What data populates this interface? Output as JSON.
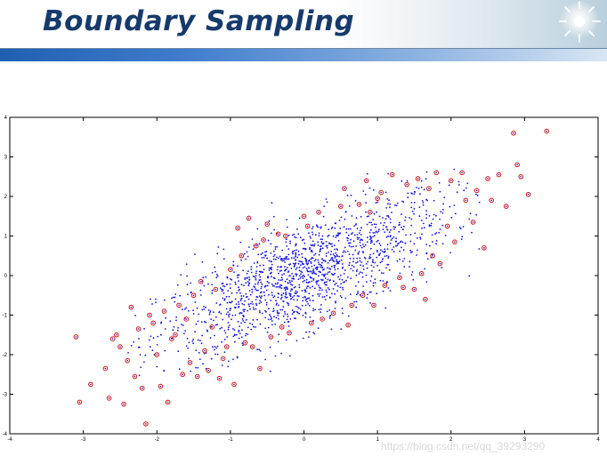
{
  "slide": {
    "title": "Boundary Sampling",
    "watermark": "https://blog.csdn.net/qq_39293290"
  },
  "colors": {
    "title": "#163a6b",
    "stripe": "#2f6fc2",
    "interior_points": "#1414d8",
    "boundary_points": "#d01010"
  },
  "chart_data": {
    "type": "scatter",
    "title": "",
    "xlabel": "",
    "ylabel": "",
    "xlim": [
      -4,
      4
    ],
    "ylim": [
      -4,
      4
    ],
    "xticks": [
      "-4",
      "-3",
      "-2",
      "-1",
      "0",
      "1",
      "2",
      "3",
      "4"
    ],
    "yticks": [
      "-4",
      "-3",
      "-2",
      "-1",
      "0",
      "1",
      "2",
      "3",
      "4"
    ],
    "grid": false,
    "legend": "none",
    "series": [
      {
        "role": "interior",
        "marker": "dot",
        "distribution": {
          "type": "bivariate-normal",
          "mean": [
            0,
            0
          ],
          "std": [
            1.0,
            1.0
          ],
          "correlation": 0.75,
          "count": 1500,
          "xrange": [
            -2.4,
            2.4
          ],
          "yrange": [
            -2.6,
            2.7
          ]
        }
      },
      {
        "role": "boundary",
        "marker": "open-circle",
        "points": [
          [
            -3.1,
            -1.55
          ],
          [
            -3.05,
            -3.2
          ],
          [
            -2.9,
            -2.75
          ],
          [
            -2.7,
            -2.35
          ],
          [
            -2.65,
            -3.1
          ],
          [
            -2.6,
            -1.6
          ],
          [
            -2.55,
            -1.5
          ],
          [
            -2.5,
            -1.8
          ],
          [
            -2.45,
            -3.25
          ],
          [
            -2.4,
            -2.15
          ],
          [
            -2.35,
            -0.8
          ],
          [
            -2.3,
            -2.55
          ],
          [
            -2.25,
            -1.35
          ],
          [
            -2.2,
            -2.85
          ],
          [
            -2.15,
            -3.75
          ],
          [
            -2.1,
            -1.0
          ],
          [
            -2.05,
            -1.2
          ],
          [
            -2.0,
            -2.0
          ],
          [
            -1.95,
            -2.8
          ],
          [
            -1.9,
            -0.9
          ],
          [
            -1.85,
            -3.2
          ],
          [
            -1.8,
            -1.6
          ],
          [
            -1.75,
            -1.5
          ],
          [
            -1.7,
            -0.75
          ],
          [
            -1.65,
            -2.5
          ],
          [
            -1.6,
            -1.1
          ],
          [
            -1.55,
            -2.2
          ],
          [
            -1.5,
            -0.5
          ],
          [
            -1.45,
            -2.55
          ],
          [
            -1.4,
            -0.15
          ],
          [
            -1.35,
            -1.9
          ],
          [
            -1.3,
            -2.4
          ],
          [
            -1.25,
            -1.3
          ],
          [
            -1.2,
            -0.35
          ],
          [
            -1.15,
            -2.6
          ],
          [
            -1.1,
            -2.1
          ],
          [
            -1.05,
            -1.8
          ],
          [
            -1.0,
            0.15
          ],
          [
            -0.95,
            -2.75
          ],
          [
            -0.9,
            1.2
          ],
          [
            -0.85,
            0.5
          ],
          [
            -0.8,
            -1.7
          ],
          [
            -0.75,
            1.45
          ],
          [
            -0.7,
            -1.8
          ],
          [
            -0.65,
            0.75
          ],
          [
            -0.6,
            -2.35
          ],
          [
            -0.55,
            0.9
          ],
          [
            -0.5,
            1.3
          ],
          [
            -0.45,
            -1.55
          ],
          [
            -0.35,
            1.05
          ],
          [
            -0.3,
            -1.3
          ],
          [
            -0.25,
            1.0
          ],
          [
            -0.2,
            -1.45
          ],
          [
            0.0,
            1.5
          ],
          [
            0.05,
            1.25
          ],
          [
            0.1,
            -1.2
          ],
          [
            0.2,
            1.6
          ],
          [
            0.25,
            -1.1
          ],
          [
            0.4,
            -0.95
          ],
          [
            0.5,
            1.75
          ],
          [
            0.55,
            2.2
          ],
          [
            0.6,
            -1.25
          ],
          [
            0.65,
            -0.75
          ],
          [
            0.75,
            1.8
          ],
          [
            0.8,
            -0.5
          ],
          [
            0.85,
            2.4
          ],
          [
            0.9,
            1.6
          ],
          [
            0.95,
            -0.75
          ],
          [
            1.0,
            1.95
          ],
          [
            1.05,
            2.1
          ],
          [
            1.1,
            -0.25
          ],
          [
            1.2,
            2.55
          ],
          [
            1.3,
            -0.05
          ],
          [
            1.35,
            -0.3
          ],
          [
            1.4,
            2.3
          ],
          [
            1.5,
            -0.35
          ],
          [
            1.55,
            2.45
          ],
          [
            1.6,
            0.05
          ],
          [
            1.65,
            -0.6
          ],
          [
            1.7,
            2.2
          ],
          [
            1.75,
            0.5
          ],
          [
            1.8,
            2.6
          ],
          [
            1.85,
            0.3
          ],
          [
            1.95,
            1.25
          ],
          [
            2.0,
            2.4
          ],
          [
            2.05,
            0.85
          ],
          [
            2.15,
            2.6
          ],
          [
            2.2,
            1.9
          ],
          [
            2.3,
            1.35
          ],
          [
            2.35,
            2.15
          ],
          [
            2.45,
            0.7
          ],
          [
            2.5,
            2.45
          ],
          [
            2.55,
            1.9
          ],
          [
            2.65,
            2.55
          ],
          [
            2.75,
            1.75
          ],
          [
            2.85,
            3.6
          ],
          [
            2.9,
            2.8
          ],
          [
            2.95,
            2.5
          ],
          [
            3.05,
            2.05
          ],
          [
            3.3,
            3.65
          ]
        ]
      }
    ]
  }
}
